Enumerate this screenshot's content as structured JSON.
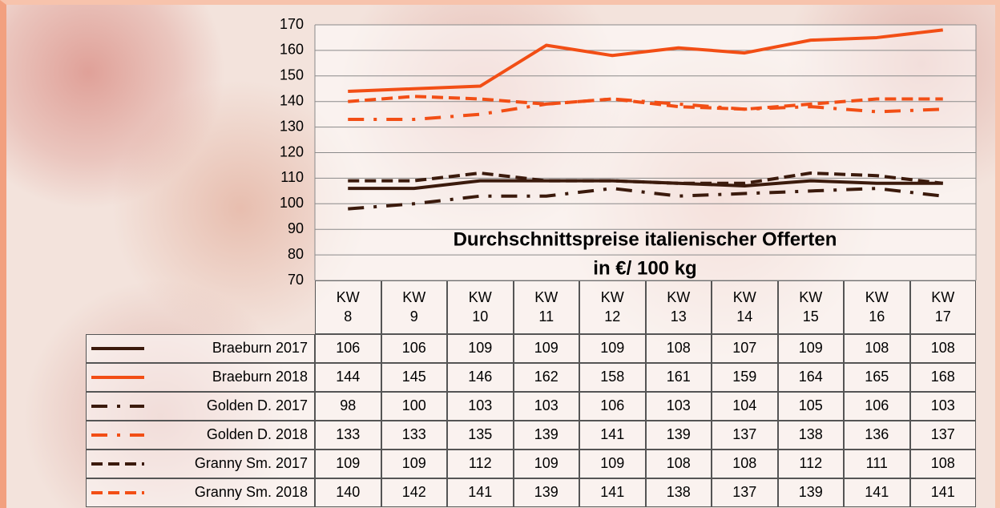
{
  "chart_data": {
    "type": "line",
    "title": "Durchschnittspreise italienischer Offerten",
    "subtitle": "in €/ 100 kg",
    "categories": [
      "KW 8",
      "KW 9",
      "KW 10",
      "KW 11",
      "KW 12",
      "KW 13",
      "KW 14",
      "KW 15",
      "KW 16",
      "KW 17"
    ],
    "series": [
      {
        "name": "Braeburn 2017",
        "color": "#3b1a0c",
        "line_style": "solid",
        "values": [
          106,
          106,
          109,
          109,
          109,
          108,
          107,
          109,
          108,
          108
        ]
      },
      {
        "name": "Braeburn 2018",
        "color": "#f24e15",
        "line_style": "solid",
        "values": [
          144,
          145,
          146,
          162,
          158,
          161,
          159,
          164,
          165,
          168
        ]
      },
      {
        "name": "Golden D. 2017",
        "color": "#3b1a0c",
        "line_style": "dashdot",
        "values": [
          98,
          100,
          103,
          103,
          106,
          103,
          104,
          105,
          106,
          103
        ]
      },
      {
        "name": "Golden D. 2018",
        "color": "#f24e15",
        "line_style": "dashdot",
        "values": [
          133,
          133,
          135,
          139,
          141,
          139,
          137,
          138,
          136,
          137
        ]
      },
      {
        "name": "Granny Sm. 2017",
        "color": "#3b1a0c",
        "line_style": "dashed",
        "values": [
          109,
          109,
          112,
          109,
          109,
          108,
          108,
          112,
          111,
          108
        ]
      },
      {
        "name": "Granny Sm. 2018",
        "color": "#f24e15",
        "line_style": "dashed",
        "values": [
          140,
          142,
          141,
          139,
          141,
          138,
          137,
          139,
          141,
          141
        ]
      }
    ],
    "ylim": [
      70,
      170
    ],
    "yticks": [
      70,
      80,
      90,
      100,
      110,
      120,
      130,
      140,
      150,
      160,
      170
    ],
    "grid": true
  }
}
